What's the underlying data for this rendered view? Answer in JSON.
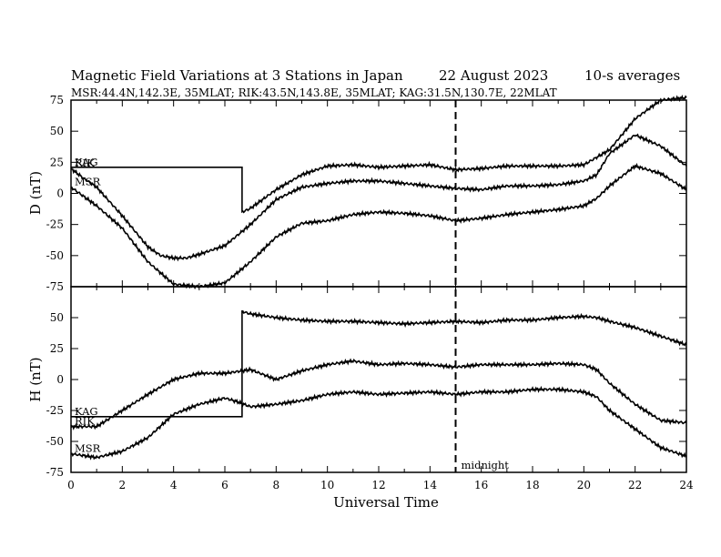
{
  "title": {
    "main": "Magnetic Field Variations at 3 Stations in Japan",
    "date": "22  August   2023",
    "averaging": "10-s averages",
    "stations_line": "MSR:44.4N,142.3E, 35MLAT;  RIK:43.5N,143.8E, 35MLAT;  KAG:31.5N,130.7E, 22MLAT"
  },
  "colors": {
    "line": "#000000",
    "background": "#ffffff"
  },
  "annotation": {
    "midnight_label": "midnight",
    "midnight_ut": 15
  },
  "chart_data": [
    {
      "type": "line",
      "ylabel": "D (nT)",
      "xlim": [
        0,
        24
      ],
      "ylim": [
        -75,
        75
      ],
      "yticks": [
        75,
        50,
        25,
        0,
        -25,
        -50,
        -75
      ],
      "grid": false,
      "legend": "inline-left",
      "series": [
        {
          "name": "KAG",
          "x": [
            0,
            6.67,
            6.67,
            7,
            8,
            9,
            10,
            11,
            12,
            13,
            14,
            15,
            16,
            17,
            18,
            19,
            20,
            21,
            22,
            23,
            24
          ],
          "y": [
            21,
            21,
            -15,
            -12,
            3,
            15,
            22,
            23,
            21,
            22,
            23,
            19,
            20,
            22,
            22,
            22,
            23,
            35,
            60,
            75,
            77
          ]
        },
        {
          "name": "RIK",
          "x": [
            0,
            0.5,
            1,
            2,
            3,
            3.5,
            4,
            4.5,
            5,
            6,
            7,
            8,
            9,
            10,
            11,
            12,
            13,
            14,
            15,
            16,
            17,
            18,
            19,
            20,
            20.5,
            21,
            22,
            23,
            24
          ],
          "y": [
            20,
            12,
            5,
            -18,
            -43,
            -50,
            -52,
            -52,
            -49,
            -42,
            -25,
            -5,
            5,
            8,
            10,
            10,
            8,
            6,
            4,
            3,
            6,
            6,
            7,
            10,
            15,
            32,
            47,
            38,
            22
          ]
        },
        {
          "name": "MSR",
          "x": [
            0,
            1,
            2,
            3,
            4,
            5,
            6,
            7,
            8,
            9,
            10,
            11,
            12,
            13,
            14,
            15,
            16,
            17,
            18,
            19,
            20,
            20.5,
            21,
            22,
            23,
            24
          ],
          "y": [
            5,
            -10,
            -28,
            -55,
            -73,
            -75,
            -72,
            -55,
            -35,
            -24,
            -22,
            -17,
            -15,
            -16,
            -18,
            -22,
            -20,
            -17,
            -15,
            -13,
            -10,
            -4,
            6,
            22,
            16,
            3
          ]
        }
      ]
    },
    {
      "type": "line",
      "ylabel": "H (nT)",
      "xlim": [
        0,
        24
      ],
      "ylim": [
        -75,
        75
      ],
      "yticks": [
        50,
        25,
        0,
        -25,
        -50,
        -75
      ],
      "xticks": [
        0,
        2,
        4,
        6,
        8,
        10,
        12,
        14,
        16,
        18,
        20,
        22,
        24
      ],
      "xlabel": "Universal Time",
      "grid": false,
      "legend": "inline-left",
      "series": [
        {
          "name": "KAG",
          "x": [
            0,
            6.67,
            6.67,
            7,
            8,
            9,
            10,
            11,
            12,
            13,
            14,
            15,
            16,
            17,
            18,
            19,
            20,
            20.5,
            21,
            22,
            23,
            24
          ],
          "y": [
            -30,
            -30,
            55,
            53,
            50,
            48,
            47,
            47,
            46,
            45,
            46,
            47,
            46,
            48,
            48,
            50,
            51,
            50,
            47,
            42,
            35,
            28
          ]
        },
        {
          "name": "RIK",
          "x": [
            0,
            1,
            2,
            3,
            4,
            5,
            6,
            7,
            8,
            9,
            10,
            11,
            12,
            13,
            14,
            15,
            16,
            17,
            18,
            19,
            20,
            20.5,
            21,
            22,
            23,
            24
          ],
          "y": [
            -38,
            -38,
            -25,
            -12,
            0,
            5,
            5,
            8,
            0,
            7,
            12,
            15,
            12,
            13,
            12,
            10,
            12,
            12,
            12,
            13,
            12,
            8,
            -3,
            -20,
            -33,
            -35
          ]
        },
        {
          "name": "MSR",
          "x": [
            0,
            1,
            2,
            3,
            4,
            5,
            6,
            6.5,
            7,
            8,
            9,
            10,
            11,
            12,
            13,
            14,
            15,
            16,
            17,
            18,
            19,
            20,
            20.5,
            21,
            22,
            23,
            24
          ],
          "y": [
            -60,
            -63,
            -58,
            -47,
            -28,
            -20,
            -15,
            -18,
            -22,
            -20,
            -17,
            -12,
            -10,
            -12,
            -11,
            -10,
            -12,
            -10,
            -10,
            -8,
            -8,
            -10,
            -14,
            -25,
            -40,
            -55,
            -62
          ]
        }
      ]
    }
  ]
}
